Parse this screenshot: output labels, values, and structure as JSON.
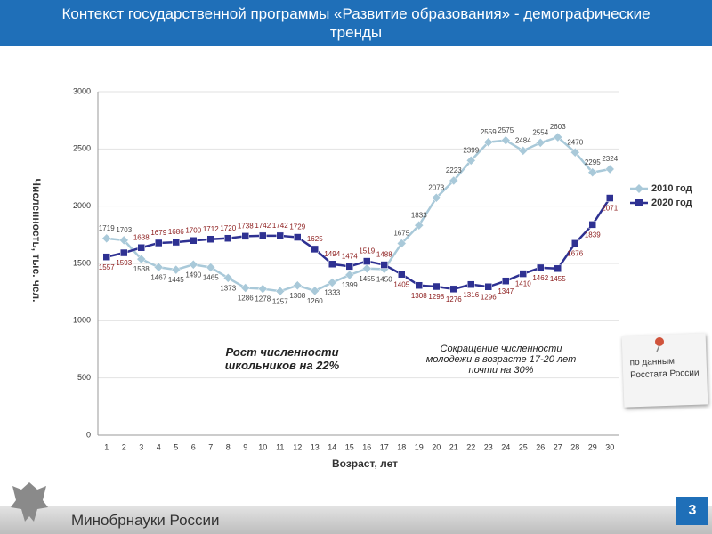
{
  "header": {
    "title": "Контекст государственной программы «Развитие образования» - демографические тренды"
  },
  "chart_data": {
    "type": "line",
    "y_label": "Численность, тыс. чел.",
    "x_label": "Возраст, лет",
    "categories": [
      1,
      2,
      3,
      4,
      5,
      6,
      7,
      8,
      9,
      10,
      11,
      12,
      13,
      14,
      15,
      16,
      17,
      18,
      19,
      20,
      21,
      22,
      23,
      24,
      25,
      26,
      27,
      28,
      29,
      30
    ],
    "series": [
      {
        "name": "2010 год",
        "color": "#a9c9d9",
        "label_color": "#444444",
        "marker": "diamond",
        "values": [
          1719,
          1703,
          1538,
          1467,
          1445,
          1490,
          1465,
          1373,
          1286,
          1278,
          1257,
          1308,
          1260,
          1333,
          1399,
          1455,
          1450,
          1675,
          1833,
          2073,
          2223,
          2399,
          2559,
          2575,
          2484,
          2554,
          2603,
          2470,
          2295,
          2324
        ]
      },
      {
        "name": "2020 год",
        "color": "#2e3192",
        "label_color": "#8b1a1a",
        "marker": "square",
        "values": [
          1557,
          1593,
          1638,
          1679,
          1686,
          1700,
          1712,
          1720,
          1738,
          1742,
          1742,
          1729,
          1625,
          1494,
          1474,
          1519,
          1488,
          1405,
          1308,
          1298,
          1276,
          1316,
          1296,
          1347,
          1410,
          1462,
          1455,
          1676,
          1839,
          2071
        ]
      }
    ],
    "ylim": [
      0,
      3000
    ],
    "yticks": [
      0,
      500,
      1000,
      1500,
      2000,
      2500,
      3000
    ],
    "grid": true,
    "legend": "right",
    "annotations": [
      "Рост численности школьников на 22%",
      "Сокращение численности молодежи в возрасте 17-20 лет почти на 30%"
    ]
  },
  "note": "по данным Росстата России",
  "footer": {
    "org": "Минобрнауки России",
    "page": "3"
  }
}
